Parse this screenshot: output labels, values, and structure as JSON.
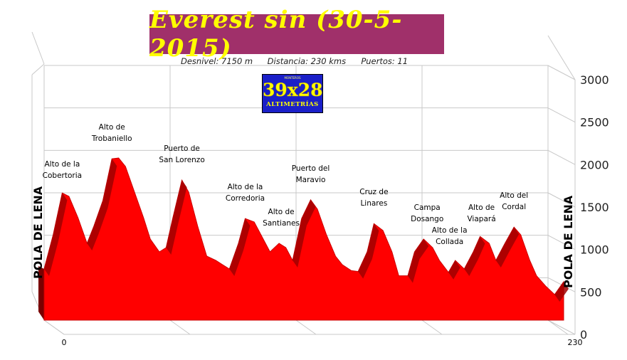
{
  "header": {
    "title": "Everest sin (30-5-2015)",
    "desnivel": "Desnivel: 7150 m",
    "distancia": "Distancia: 230 kms",
    "puertos": "Puertos:   11"
  },
  "logo": {
    "top_text": "MONTEROS",
    "main_text": "39x28",
    "sub_text": "ALTIMETRÍAS"
  },
  "endpoints": {
    "start_label": "POLA DE LENA",
    "end_label": "POLA DE LENA"
  },
  "colors": {
    "fill": "#ff0000",
    "climb_hatch": "#a00000",
    "title_bg": "#a0306a",
    "title_fg": "#ffff00",
    "logo_bg": "#1a1fc8"
  },
  "chart_data": {
    "type": "area",
    "xlim": [
      0,
      230
    ],
    "ylim": [
      0,
      3000
    ],
    "x_ticks": [
      "0",
      "230"
    ],
    "y_ticks": [
      "0",
      "500",
      "1000",
      "1500",
      "2000",
      "2500",
      "3000"
    ],
    "profile": {
      "x": [
        0,
        4,
        8,
        11,
        15,
        19,
        22,
        26,
        30,
        33,
        36,
        40,
        44,
        47,
        51,
        54,
        57,
        61,
        64,
        68,
        72,
        76,
        79,
        82,
        86,
        89,
        93,
        96,
        100,
        104,
        107,
        110,
        114,
        118,
        121,
        125,
        129,
        132,
        136,
        139,
        143,
        146,
        150,
        154,
        157,
        161,
        164,
        168,
        172,
        175,
        179,
        182,
        186,
        190,
        193,
        197,
        200,
        204,
        208,
        211,
        215,
        218,
        222,
        226,
        230
      ],
      "y": [
        600,
        1000,
        1490,
        1450,
        1200,
        900,
        1100,
        1400,
        1890,
        1900,
        1800,
        1500,
        1200,
        950,
        800,
        850,
        1200,
        1640,
        1500,
        1100,
        750,
        700,
        650,
        600,
        900,
        1190,
        1150,
        1000,
        800,
        900,
        850,
        700,
        1190,
        1410,
        1300,
        1000,
        750,
        650,
        580,
        570,
        800,
        1130,
        1050,
        800,
        520,
        520,
        800,
        950,
        850,
        700,
        560,
        700,
        600,
        800,
        980,
        900,
        700,
        900,
        1090,
        1000,
        700,
        520,
        400,
        300,
        450
      ]
    },
    "annotations": [
      {
        "x": 8,
        "label": "Alto de la\nCobertoria"
      },
      {
        "x": 30,
        "label": "Alto de\nTrobaniello"
      },
      {
        "x": 61,
        "label": "Puerto de\nSan Lorenzo"
      },
      {
        "x": 89,
        "label": "Alto de la\nCorredoria"
      },
      {
        "x": 104,
        "label": "Alto de\nSantianes"
      },
      {
        "x": 118,
        "label": "Puerto del\nMaravio"
      },
      {
        "x": 146,
        "label": "Cruz de\nLinares"
      },
      {
        "x": 168,
        "label": "Campa\nDosango"
      },
      {
        "x": 182,
        "label": "Alto de la\nCollada"
      },
      {
        "x": 193,
        "label": "Alto de\nViapará"
      },
      {
        "x": 208,
        "label": "Alto del\nCordal"
      }
    ]
  }
}
